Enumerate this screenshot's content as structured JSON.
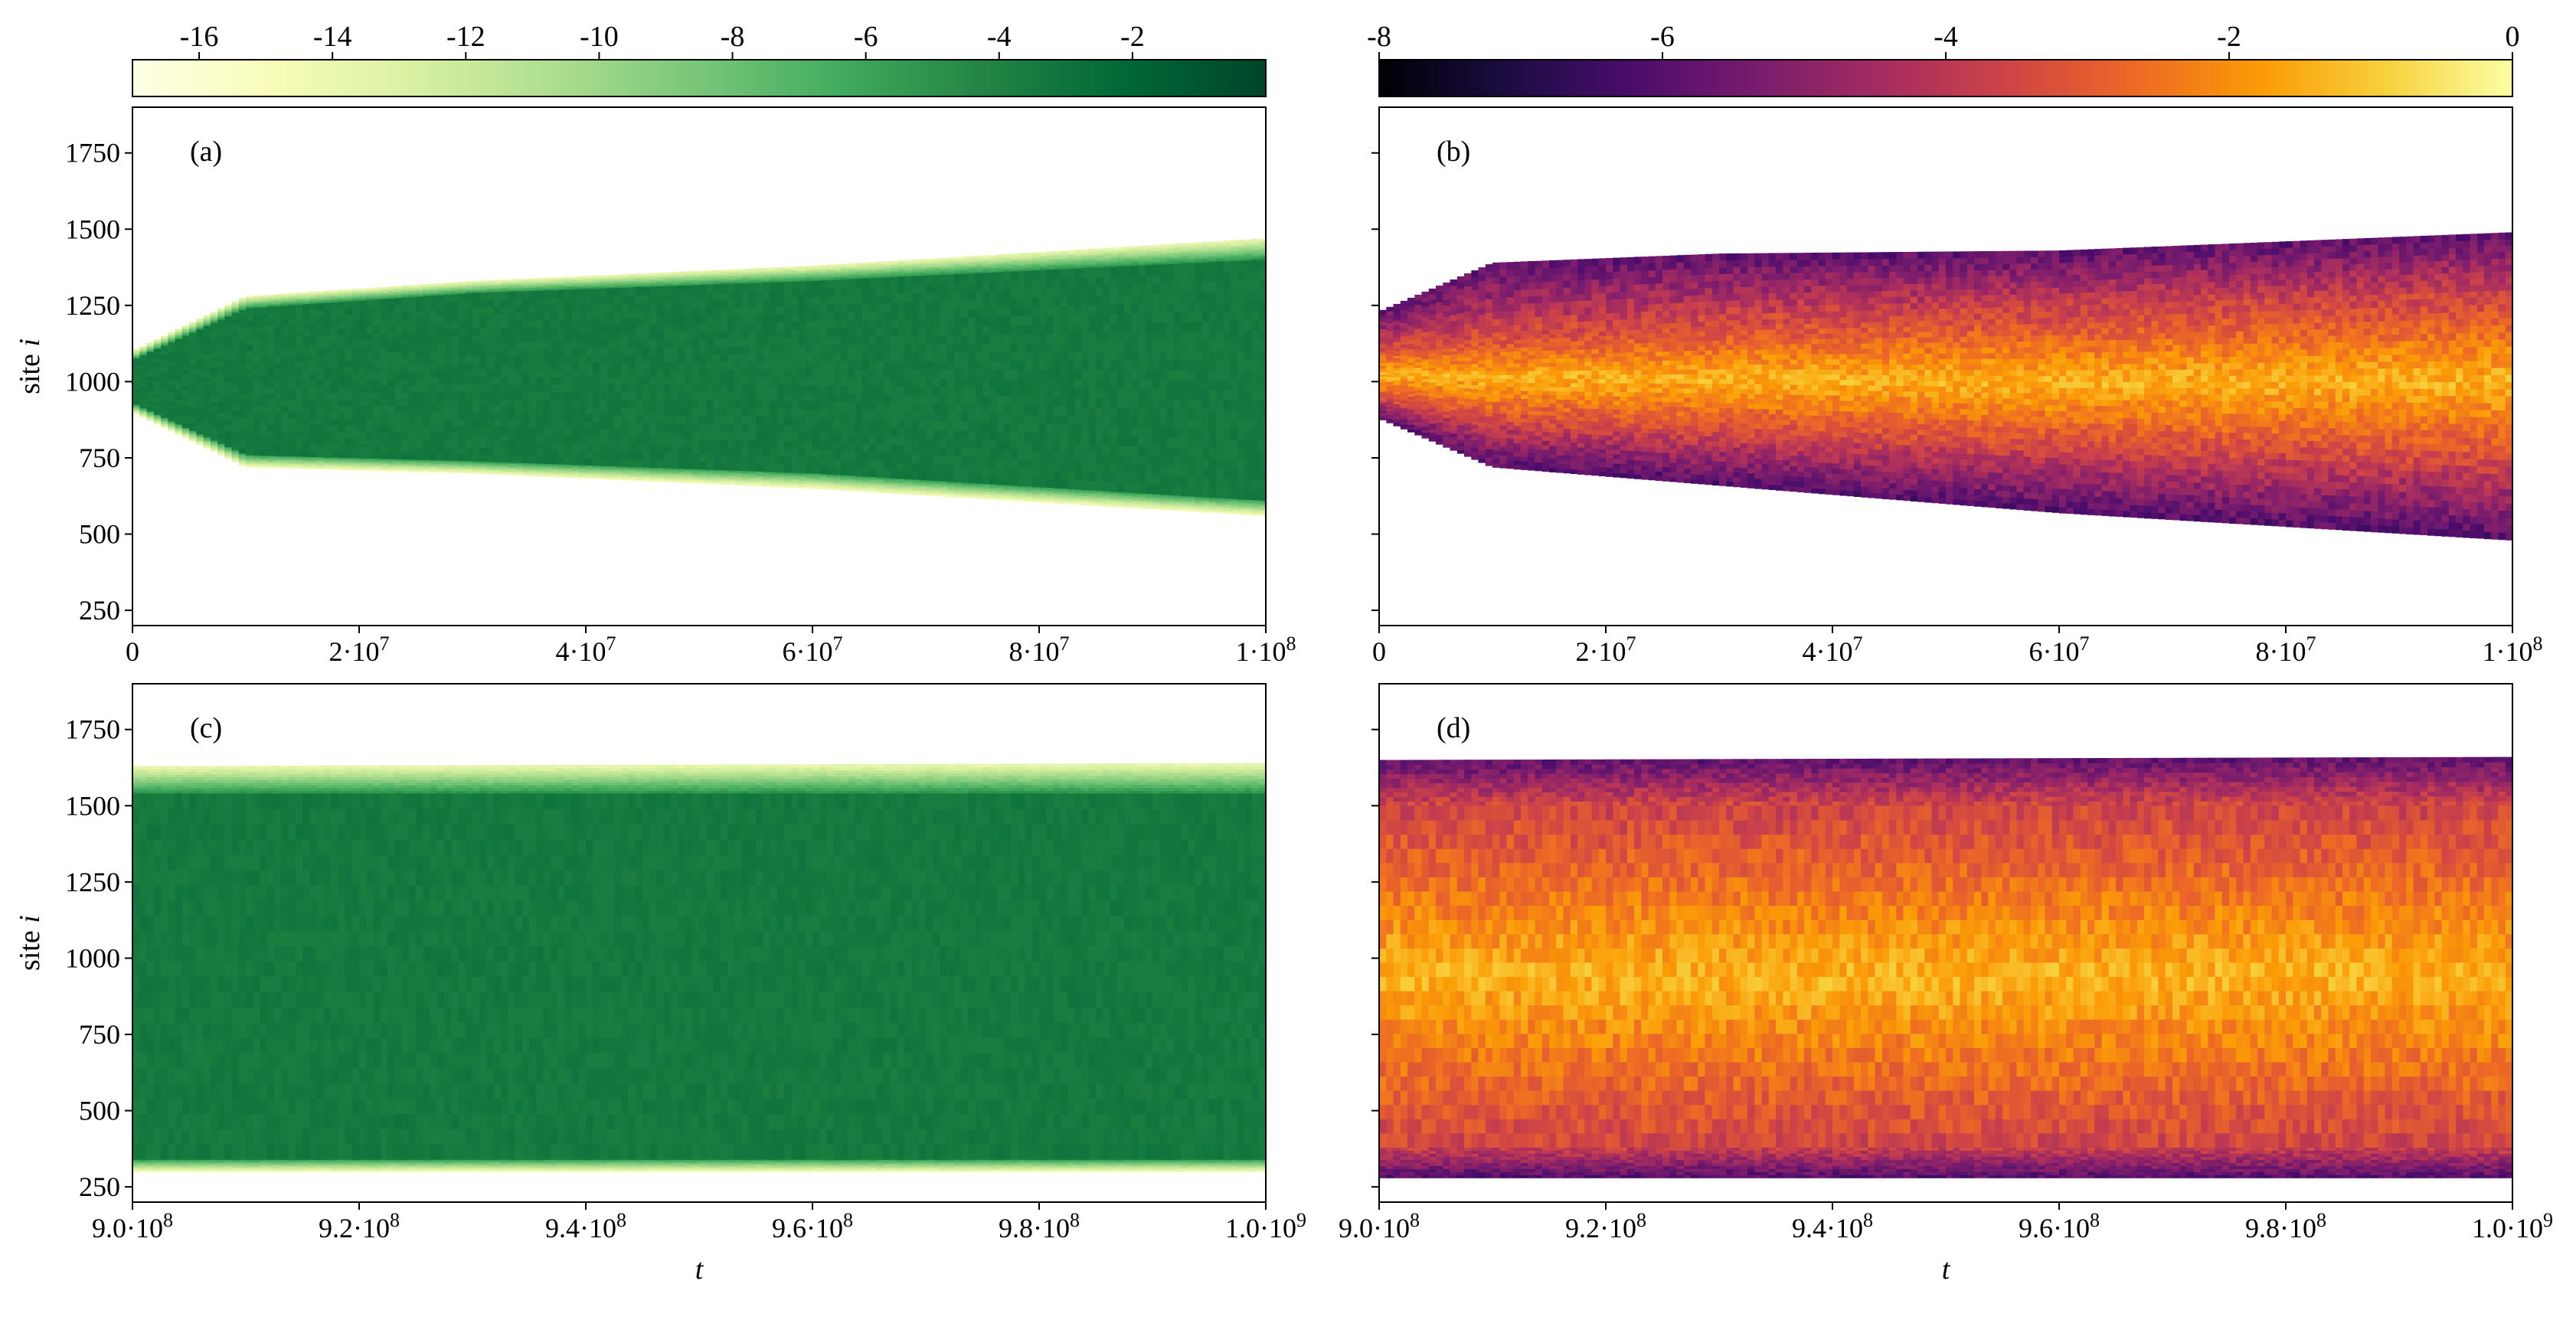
{
  "colorbars": [
    {
      "name": "greens",
      "range": [
        -17,
        0
      ],
      "ticks": [
        -16,
        -14,
        -12,
        -10,
        -8,
        -6,
        -4,
        -2
      ],
      "tick_labels": [
        "-16",
        "-14",
        "-12",
        "-10",
        "-8",
        "-6",
        "-4",
        "-2"
      ],
      "stops": [
        "#ffffe5",
        "#f7fcb9",
        "#d9f0a3",
        "#addd8e",
        "#78c679",
        "#41ab5d",
        "#238443",
        "#006837",
        "#004529"
      ]
    },
    {
      "name": "inferno",
      "range": [
        -8,
        0
      ],
      "ticks": [
        -8,
        -6,
        -4,
        -2,
        0
      ],
      "tick_labels": [
        "-8",
        "-6",
        "-4",
        "-2",
        "0"
      ],
      "stops": [
        "#000004",
        "#1b0c41",
        "#4a0c6b",
        "#781c6d",
        "#a52c60",
        "#cf4446",
        "#ed6925",
        "#fb9b06",
        "#f7d13d",
        "#fcffa4"
      ]
    }
  ],
  "chart_data": [
    {
      "type": "heatmap",
      "panel": "(a)",
      "colormap": "greens",
      "xlim": [
        0,
        100000000
      ],
      "ylim": [
        200,
        1900
      ],
      "x_ticks": [
        0,
        20000000,
        40000000,
        60000000,
        80000000,
        100000000
      ],
      "x_tick_labels": [
        [
          "0",
          ""
        ],
        [
          "2·10",
          "7"
        ],
        [
          "4·10",
          "7"
        ],
        [
          "6·10",
          "7"
        ],
        [
          "8·10",
          "7"
        ],
        [
          "1·10",
          "8"
        ]
      ],
      "y_ticks": [
        250,
        500,
        750,
        1000,
        1250,
        1500,
        1750
      ],
      "y_tick_labels": [
        "250",
        "500",
        "750",
        "1000",
        "1250",
        "1500",
        "1750"
      ],
      "ylabel": "site i",
      "xlabel": "",
      "support_lower": [
        [
          0,
          900
        ],
        [
          10000000,
          720
        ],
        [
          30000000,
          700
        ],
        [
          60000000,
          650
        ],
        [
          100000000,
          560
        ]
      ],
      "support_upper": [
        [
          0,
          1100
        ],
        [
          10000000,
          1280
        ],
        [
          30000000,
          1330
        ],
        [
          60000000,
          1380
        ],
        [
          100000000,
          1470
        ]
      ],
      "core_lower": [
        [
          0,
          930
        ],
        [
          10000000,
          760
        ],
        [
          30000000,
          740
        ],
        [
          60000000,
          700
        ],
        [
          100000000,
          610
        ]
      ],
      "core_upper": [
        [
          0,
          1070
        ],
        [
          10000000,
          1240
        ],
        [
          30000000,
          1290
        ],
        [
          60000000,
          1330
        ],
        [
          100000000,
          1400
        ]
      ]
    },
    {
      "type": "heatmap",
      "panel": "(b)",
      "colormap": "inferno",
      "xlim": [
        0,
        100000000
      ],
      "ylim": [
        200,
        1900
      ],
      "x_ticks": [
        0,
        20000000,
        40000000,
        60000000,
        80000000,
        100000000
      ],
      "x_tick_labels": [
        [
          "0",
          ""
        ],
        [
          "2·10",
          "7"
        ],
        [
          "4·10",
          "7"
        ],
        [
          "6·10",
          "7"
        ],
        [
          "8·10",
          "7"
        ],
        [
          "1·10",
          "8"
        ]
      ],
      "y_ticks": [
        250,
        500,
        750,
        1000,
        1250,
        1500,
        1750
      ],
      "y_tick_labels": [
        "",
        "",
        "",
        "",
        "",
        "",
        ""
      ],
      "ylabel": "",
      "xlabel": "",
      "support_lower": [
        [
          0,
          880
        ],
        [
          10000000,
          720
        ],
        [
          30000000,
          660
        ],
        [
          60000000,
          570
        ],
        [
          100000000,
          480
        ]
      ],
      "support_upper": [
        [
          0,
          1230
        ],
        [
          10000000,
          1390
        ],
        [
          30000000,
          1420
        ],
        [
          60000000,
          1430
        ],
        [
          100000000,
          1490
        ]
      ],
      "core_lower": [
        [
          0,
          940
        ],
        [
          10000000,
          860
        ],
        [
          30000000,
          820
        ],
        [
          60000000,
          770
        ],
        [
          100000000,
          720
        ]
      ],
      "core_upper": [
        [
          0,
          1110
        ],
        [
          10000000,
          1160
        ],
        [
          30000000,
          1200
        ],
        [
          60000000,
          1230
        ],
        [
          100000000,
          1280
        ]
      ]
    },
    {
      "type": "heatmap",
      "panel": "(c)",
      "colormap": "greens",
      "xlim": [
        900000000,
        1000000000
      ],
      "ylim": [
        200,
        1900
      ],
      "x_ticks": [
        900000000,
        920000000,
        940000000,
        960000000,
        980000000,
        1000000000
      ],
      "x_tick_labels": [
        [
          "9.0·10",
          "8"
        ],
        [
          "9.2·10",
          "8"
        ],
        [
          "9.4·10",
          "8"
        ],
        [
          "9.6·10",
          "8"
        ],
        [
          "9.8·10",
          "8"
        ],
        [
          "1.0·10",
          "9"
        ]
      ],
      "y_ticks": [
        250,
        500,
        750,
        1000,
        1250,
        1500,
        1750
      ],
      "y_tick_labels": [
        "250",
        "500",
        "750",
        "1000",
        "1250",
        "1500",
        "1750"
      ],
      "ylabel": "site i",
      "xlabel": "t",
      "support_lower": [
        [
          900000000,
          300
        ],
        [
          1000000000,
          300
        ]
      ],
      "support_upper": [
        [
          900000000,
          1630
        ],
        [
          1000000000,
          1640
        ]
      ],
      "core_lower": [
        [
          900000000,
          340
        ],
        [
          1000000000,
          340
        ]
      ],
      "core_upper": [
        [
          900000000,
          1540
        ],
        [
          1000000000,
          1540
        ]
      ]
    },
    {
      "type": "heatmap",
      "panel": "(d)",
      "colormap": "inferno",
      "xlim": [
        900000000,
        1000000000
      ],
      "ylim": [
        200,
        1900
      ],
      "x_ticks": [
        900000000,
        920000000,
        940000000,
        960000000,
        980000000,
        1000000000
      ],
      "x_tick_labels": [
        [
          "9.0·10",
          "8"
        ],
        [
          "9.2·10",
          "8"
        ],
        [
          "9.4·10",
          "8"
        ],
        [
          "9.6·10",
          "8"
        ],
        [
          "9.8·10",
          "8"
        ],
        [
          "1.0·10",
          "9"
        ]
      ],
      "y_ticks": [
        250,
        500,
        750,
        1000,
        1250,
        1500,
        1750
      ],
      "y_tick_labels": [
        "",
        "",
        "",
        "",
        "",
        "",
        ""
      ],
      "ylabel": "",
      "xlabel": "t",
      "support_lower": [
        [
          900000000,
          280
        ],
        [
          1000000000,
          280
        ]
      ],
      "support_upper": [
        [
          900000000,
          1650
        ],
        [
          1000000000,
          1660
        ]
      ],
      "core_lower": [
        [
          900000000,
          380
        ],
        [
          1000000000,
          380
        ]
      ],
      "core_upper": [
        [
          900000000,
          1500
        ],
        [
          1000000000,
          1500
        ]
      ]
    }
  ]
}
